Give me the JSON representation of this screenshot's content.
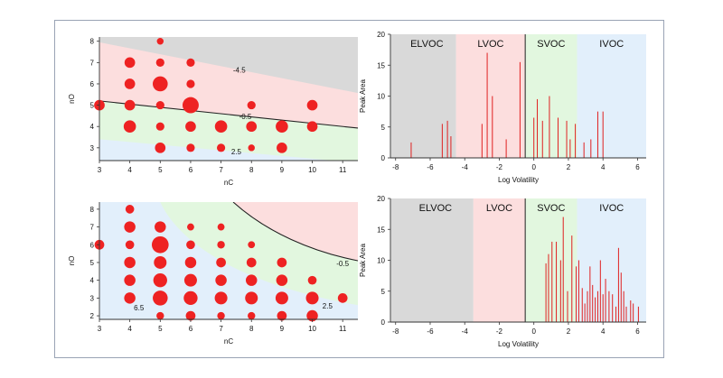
{
  "chart_data": [
    {
      "type": "scatter",
      "xlabel": "nC",
      "ylabel": "nO",
      "xlim": [
        3,
        11.5
      ],
      "ylim": [
        2.4,
        8.2
      ],
      "xticks": [
        3,
        4,
        5,
        6,
        7,
        8,
        9,
        10,
        11
      ],
      "yticks": [
        3,
        4,
        5,
        6,
        7,
        8
      ],
      "contour_labels": [
        "-4.5",
        "-0.5",
        "2.5"
      ],
      "colors": {
        "elvoc": "#d9d9d9",
        "lvoc": "#fcdede",
        "svoc": "#e2f7df",
        "ivoc": "#e2effb",
        "marker": "#ee2222"
      },
      "points": [
        {
          "x": 3,
          "y": 5,
          "v": 2
        },
        {
          "x": 4,
          "y": 4,
          "v": 3
        },
        {
          "x": 4,
          "y": 5,
          "v": 2
        },
        {
          "x": 4,
          "y": 6,
          "v": 2
        },
        {
          "x": 4,
          "y": 7,
          "v": 2
        },
        {
          "x": 5,
          "y": 3,
          "v": 2
        },
        {
          "x": 5,
          "y": 4,
          "v": 1
        },
        {
          "x": 5,
          "y": 5,
          "v": 1
        },
        {
          "x": 5,
          "y": 6,
          "v": 5
        },
        {
          "x": 5,
          "y": 7,
          "v": 1
        },
        {
          "x": 5,
          "y": 8,
          "v": 0.5
        },
        {
          "x": 6,
          "y": 3,
          "v": 1
        },
        {
          "x": 6,
          "y": 4,
          "v": 2
        },
        {
          "x": 6,
          "y": 5,
          "v": 6
        },
        {
          "x": 6,
          "y": 6,
          "v": 1
        },
        {
          "x": 6,
          "y": 7,
          "v": 1
        },
        {
          "x": 7,
          "y": 3,
          "v": 1
        },
        {
          "x": 7,
          "y": 4,
          "v": 3
        },
        {
          "x": 8,
          "y": 3,
          "v": 0.5
        },
        {
          "x": 8,
          "y": 4,
          "v": 2
        },
        {
          "x": 8,
          "y": 5,
          "v": 1
        },
        {
          "x": 9,
          "y": 3,
          "v": 2
        },
        {
          "x": 9,
          "y": 4,
          "v": 3
        },
        {
          "x": 10,
          "y": 4,
          "v": 2
        },
        {
          "x": 10,
          "y": 5,
          "v": 2
        }
      ]
    },
    {
      "type": "bar",
      "xlabel": "Log Volatility",
      "ylabel": "Peak Area",
      "xlim": [
        -8.3,
        6.5
      ],
      "ylim": [
        0,
        20
      ],
      "xticks": [
        -8,
        -6,
        -4,
        -2,
        0,
        2,
        4,
        6
      ],
      "yticks": [
        0,
        5,
        10,
        15,
        20
      ],
      "regions": [
        {
          "label": "ELVOC",
          "from": -8.3,
          "to": -4.5,
          "color": "#d9d9d9"
        },
        {
          "label": "LVOC",
          "from": -4.5,
          "to": -0.5,
          "color": "#fcdede"
        },
        {
          "label": "SVOC",
          "from": -0.5,
          "to": 2.5,
          "color": "#e2f7df"
        },
        {
          "label": "IVOC",
          "from": 2.5,
          "to": 6.5,
          "color": "#e2effb"
        }
      ],
      "bars": [
        {
          "x": -7.1,
          "y": 2.5
        },
        {
          "x": -5.3,
          "y": 5.5
        },
        {
          "x": -5.0,
          "y": 6
        },
        {
          "x": -4.8,
          "y": 3.5
        },
        {
          "x": -3.0,
          "y": 5.5
        },
        {
          "x": -2.7,
          "y": 17
        },
        {
          "x": -2.4,
          "y": 10
        },
        {
          "x": -1.6,
          "y": 3
        },
        {
          "x": -0.8,
          "y": 15.5
        },
        {
          "x": 0.0,
          "y": 6.5
        },
        {
          "x": 0.2,
          "y": 9.5
        },
        {
          "x": 0.5,
          "y": 6
        },
        {
          "x": 0.9,
          "y": 10
        },
        {
          "x": 1.4,
          "y": 6.5
        },
        {
          "x": 1.9,
          "y": 6
        },
        {
          "x": 2.1,
          "y": 3
        },
        {
          "x": 2.4,
          "y": 5.5
        },
        {
          "x": 2.9,
          "y": 2.5
        },
        {
          "x": 3.3,
          "y": 3
        },
        {
          "x": 3.7,
          "y": 7.5
        },
        {
          "x": 4.0,
          "y": 7.5
        }
      ]
    },
    {
      "type": "scatter",
      "xlabel": "nC",
      "ylabel": "nO",
      "xlim": [
        3,
        11.5
      ],
      "ylim": [
        1.8,
        8.4
      ],
      "xticks": [
        3,
        4,
        5,
        6,
        7,
        8,
        9,
        10,
        11
      ],
      "yticks": [
        2,
        3,
        4,
        5,
        6,
        7,
        8
      ],
      "contour_labels": [
        "-0.5",
        "2.5",
        "6.5"
      ],
      "colors": {
        "lvoc": "#fcdede",
        "svoc": "#e2f7df",
        "ivoc": "#e2effb",
        "marker": "#ee2222"
      },
      "points": [
        {
          "x": 3,
          "y": 6,
          "v": 2
        },
        {
          "x": 4,
          "y": 3,
          "v": 3
        },
        {
          "x": 4,
          "y": 4,
          "v": 3
        },
        {
          "x": 4,
          "y": 5,
          "v": 3
        },
        {
          "x": 4,
          "y": 6,
          "v": 1.5
        },
        {
          "x": 4,
          "y": 7,
          "v": 3
        },
        {
          "x": 4,
          "y": 8,
          "v": 1.5
        },
        {
          "x": 5,
          "y": 2,
          "v": 1
        },
        {
          "x": 5,
          "y": 3,
          "v": 6
        },
        {
          "x": 5,
          "y": 4,
          "v": 5
        },
        {
          "x": 5,
          "y": 5,
          "v": 4
        },
        {
          "x": 5,
          "y": 6,
          "v": 8
        },
        {
          "x": 5,
          "y": 7,
          "v": 3
        },
        {
          "x": 6,
          "y": 2,
          "v": 2
        },
        {
          "x": 6,
          "y": 3,
          "v": 5
        },
        {
          "x": 6,
          "y": 4,
          "v": 4
        },
        {
          "x": 6,
          "y": 5,
          "v": 3
        },
        {
          "x": 6,
          "y": 6,
          "v": 1.5
        },
        {
          "x": 6,
          "y": 7,
          "v": 0.8
        },
        {
          "x": 7,
          "y": 2,
          "v": 1
        },
        {
          "x": 7,
          "y": 3,
          "v": 4
        },
        {
          "x": 7,
          "y": 4,
          "v": 3
        },
        {
          "x": 7,
          "y": 5,
          "v": 2
        },
        {
          "x": 7,
          "y": 6,
          "v": 1
        },
        {
          "x": 7,
          "y": 7,
          "v": 0.8
        },
        {
          "x": 8,
          "y": 2,
          "v": 1
        },
        {
          "x": 8,
          "y": 3,
          "v": 4
        },
        {
          "x": 8,
          "y": 4,
          "v": 3
        },
        {
          "x": 8,
          "y": 5,
          "v": 2
        },
        {
          "x": 8,
          "y": 6,
          "v": 0.8
        },
        {
          "x": 9,
          "y": 2,
          "v": 2
        },
        {
          "x": 9,
          "y": 3,
          "v": 4
        },
        {
          "x": 9,
          "y": 4,
          "v": 3
        },
        {
          "x": 9,
          "y": 5,
          "v": 2
        },
        {
          "x": 10,
          "y": 2,
          "v": 3
        },
        {
          "x": 10,
          "y": 3,
          "v": 4
        },
        {
          "x": 10,
          "y": 4,
          "v": 1.5
        },
        {
          "x": 11,
          "y": 3,
          "v": 2
        }
      ]
    },
    {
      "type": "bar",
      "xlabel": "Log Volatility",
      "ylabel": "Peak Area",
      "xlim": [
        -8.3,
        6.5
      ],
      "ylim": [
        0,
        20
      ],
      "xticks": [
        -8,
        -6,
        -4,
        -2,
        0,
        2,
        4,
        6
      ],
      "yticks": [
        0,
        5,
        10,
        15,
        20
      ],
      "regions": [
        {
          "label": "ELVOC",
          "from": -8.3,
          "to": -3.5,
          "color": "#d9d9d9"
        },
        {
          "label": "LVOC",
          "from": -3.5,
          "to": -0.5,
          "color": "#fcdede"
        },
        {
          "label": "SVOC",
          "from": -0.5,
          "to": 2.5,
          "color": "#e2f7df"
        },
        {
          "label": "IVOC",
          "from": 2.5,
          "to": 6.5,
          "color": "#e2effb"
        }
      ],
      "bars": [
        {
          "x": 0.7,
          "y": 9.5
        },
        {
          "x": 0.85,
          "y": 11
        },
        {
          "x": 1.05,
          "y": 13
        },
        {
          "x": 1.3,
          "y": 13
        },
        {
          "x": 1.55,
          "y": 10
        },
        {
          "x": 1.7,
          "y": 17
        },
        {
          "x": 1.95,
          "y": 5
        },
        {
          "x": 2.2,
          "y": 14
        },
        {
          "x": 2.45,
          "y": 9
        },
        {
          "x": 2.6,
          "y": 10
        },
        {
          "x": 2.8,
          "y": 5.5
        },
        {
          "x": 2.95,
          "y": 3
        },
        {
          "x": 3.1,
          "y": 5
        },
        {
          "x": 3.25,
          "y": 9
        },
        {
          "x": 3.4,
          "y": 6
        },
        {
          "x": 3.55,
          "y": 4
        },
        {
          "x": 3.7,
          "y": 5
        },
        {
          "x": 3.85,
          "y": 10
        },
        {
          "x": 4.0,
          "y": 4.5
        },
        {
          "x": 4.15,
          "y": 7
        },
        {
          "x": 4.35,
          "y": 5
        },
        {
          "x": 4.55,
          "y": 4.5
        },
        {
          "x": 4.75,
          "y": 2.5
        },
        {
          "x": 4.9,
          "y": 12
        },
        {
          "x": 5.05,
          "y": 8
        },
        {
          "x": 5.2,
          "y": 5
        },
        {
          "x": 5.35,
          "y": 2.5
        },
        {
          "x": 5.6,
          "y": 3.5
        },
        {
          "x": 5.75,
          "y": 3
        },
        {
          "x": 6.05,
          "y": 2.5
        }
      ]
    }
  ]
}
